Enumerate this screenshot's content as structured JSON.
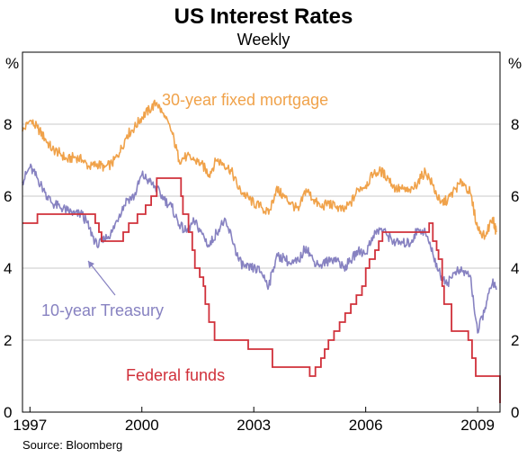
{
  "chart_data": {
    "type": "line",
    "title": "US Interest Rates",
    "subtitle": "Weekly",
    "ylabel_left": "%",
    "ylabel_right": "%",
    "ylim": [
      0,
      10
    ],
    "yticks": [
      "0",
      "2",
      "4",
      "6",
      "8"
    ],
    "xlim": [
      1996.8,
      2009.6
    ],
    "xticks": [
      {
        "value": 1997,
        "label": "1997"
      },
      {
        "value": 2000,
        "label": "2000"
      },
      {
        "value": 2003,
        "label": "2003"
      },
      {
        "value": 2006,
        "label": "2006"
      },
      {
        "value": 2009,
        "label": "2009"
      }
    ],
    "grid": true,
    "source": "Source: Bloomberg",
    "series": [
      {
        "name": "30-year fixed mortgage",
        "color": "#f0a24a",
        "x": [
          1996.8,
          1997.0,
          1997.2,
          1997.4,
          1997.6,
          1997.8,
          1998.0,
          1998.2,
          1998.4,
          1998.6,
          1998.8,
          1999.0,
          1999.2,
          1999.4,
          1999.6,
          1999.8,
          2000.0,
          2000.2,
          2000.4,
          2000.6,
          2000.8,
          2001.0,
          2001.2,
          2001.4,
          2001.6,
          2001.8,
          2002.0,
          2002.2,
          2002.4,
          2002.6,
          2002.8,
          2003.0,
          2003.2,
          2003.4,
          2003.6,
          2003.8,
          2004.0,
          2004.2,
          2004.4,
          2004.6,
          2004.8,
          2005.0,
          2005.2,
          2005.4,
          2005.6,
          2005.8,
          2006.0,
          2006.2,
          2006.4,
          2006.6,
          2006.8,
          2007.0,
          2007.2,
          2007.4,
          2007.6,
          2007.8,
          2008.0,
          2008.2,
          2008.4,
          2008.6,
          2008.8,
          2009.0,
          2009.2,
          2009.4,
          2009.5
        ],
        "values": [
          7.8,
          8.1,
          7.9,
          7.6,
          7.3,
          7.2,
          7.0,
          7.1,
          7.0,
          6.8,
          6.9,
          6.8,
          6.9,
          7.2,
          7.7,
          7.9,
          8.2,
          8.4,
          8.6,
          8.2,
          7.8,
          7.0,
          7.1,
          7.0,
          6.9,
          6.6,
          7.0,
          6.9,
          6.7,
          6.2,
          6.0,
          5.8,
          5.7,
          5.5,
          6.2,
          6.0,
          5.8,
          5.6,
          6.2,
          5.9,
          5.7,
          5.8,
          5.7,
          5.6,
          5.8,
          6.2,
          6.3,
          6.6,
          6.7,
          6.5,
          6.2,
          6.2,
          6.1,
          6.4,
          6.7,
          6.3,
          5.8,
          5.9,
          6.2,
          6.4,
          6.1,
          5.1,
          4.9,
          5.4,
          5.0
        ]
      },
      {
        "name": "10-year Treasury",
        "color": "#8782c1",
        "x": [
          1996.8,
          1997.0,
          1997.2,
          1997.4,
          1997.6,
          1997.8,
          1998.0,
          1998.2,
          1998.4,
          1998.6,
          1998.8,
          1999.0,
          1999.2,
          1999.4,
          1999.6,
          1999.8,
          2000.0,
          2000.2,
          2000.4,
          2000.6,
          2000.8,
          2001.0,
          2001.2,
          2001.4,
          2001.6,
          2001.8,
          2002.0,
          2002.2,
          2002.4,
          2002.6,
          2002.8,
          2003.0,
          2003.2,
          2003.4,
          2003.6,
          2003.8,
          2004.0,
          2004.2,
          2004.4,
          2004.6,
          2004.8,
          2005.0,
          2005.2,
          2005.4,
          2005.6,
          2005.8,
          2006.0,
          2006.2,
          2006.4,
          2006.6,
          2006.8,
          2007.0,
          2007.2,
          2007.4,
          2007.6,
          2007.8,
          2008.0,
          2008.2,
          2008.4,
          2008.6,
          2008.8,
          2009.0,
          2009.2,
          2009.4,
          2009.5
        ],
        "values": [
          6.4,
          6.8,
          6.5,
          6.1,
          5.8,
          5.7,
          5.6,
          5.5,
          5.5,
          5.1,
          4.6,
          4.8,
          5.0,
          5.5,
          5.9,
          6.0,
          6.6,
          6.4,
          6.2,
          5.9,
          5.7,
          5.2,
          5.0,
          5.3,
          5.0,
          4.6,
          5.0,
          5.3,
          4.9,
          4.2,
          4.0,
          4.0,
          3.9,
          3.5,
          4.3,
          4.3,
          4.1,
          4.2,
          4.6,
          4.2,
          4.1,
          4.2,
          4.3,
          4.0,
          4.2,
          4.5,
          4.4,
          4.9,
          5.1,
          4.9,
          4.7,
          4.7,
          4.7,
          5.1,
          5.0,
          4.4,
          3.8,
          3.6,
          3.9,
          3.9,
          3.8,
          2.2,
          2.9,
          3.6,
          3.4
        ]
      },
      {
        "name": "Federal funds",
        "color": "#d0303a",
        "step": true,
        "x": [
          1996.8,
          1997.2,
          1998.75,
          1998.85,
          1998.92,
          1999.5,
          1999.65,
          1999.88,
          2000.1,
          2000.25,
          2000.4,
          2001.05,
          2001.1,
          2001.25,
          2001.35,
          2001.42,
          2001.55,
          2001.65,
          2001.7,
          2001.8,
          2001.95,
          2002.85,
          2003.5,
          2004.5,
          2004.65,
          2004.8,
          2004.9,
          2005.0,
          2005.15,
          2005.3,
          2005.45,
          2005.6,
          2005.75,
          2005.9,
          2006.0,
          2006.1,
          2006.25,
          2006.35,
          2006.45,
          2007.7,
          2007.8,
          2007.9,
          2007.95,
          2008.05,
          2008.1,
          2008.3,
          2008.75,
          2008.85,
          2008.95,
          2009.6
        ],
        "values": [
          5.25,
          5.5,
          5.25,
          5.0,
          4.75,
          5.0,
          5.25,
          5.5,
          5.75,
          6.0,
          6.5,
          6.0,
          5.5,
          5.0,
          4.5,
          4.0,
          3.75,
          3.5,
          3.0,
          2.5,
          2.0,
          1.75,
          1.25,
          1.0,
          1.25,
          1.5,
          1.75,
          2.0,
          2.25,
          2.5,
          2.75,
          3.0,
          3.25,
          3.5,
          4.0,
          4.25,
          4.5,
          4.75,
          5.0,
          5.25,
          4.75,
          4.5,
          4.25,
          3.5,
          3.0,
          2.25,
          2.0,
          1.5,
          1.0,
          0.25
        ]
      }
    ]
  },
  "labels": {
    "mortgage": "30-year fixed mortgage",
    "treasury": "10-year Treasury",
    "fedfunds": "Federal funds"
  }
}
